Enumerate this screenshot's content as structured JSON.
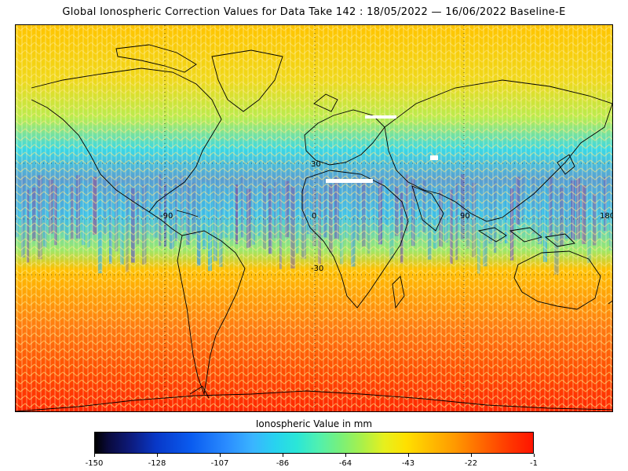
{
  "title": "Global Ionospheric Correction Values for Data Take 142 : 18/05/2022 — 16/06/2022 Baseline-E",
  "map": {
    "longitude_labels": [
      "-90",
      "0",
      "90",
      "180"
    ],
    "latitude_labels": [
      "30",
      "-30"
    ]
  },
  "colorbar": {
    "title": "Ionospheric Value in mm",
    "min": -150,
    "max": -1,
    "ticks": [
      "-150",
      "-128",
      "-107",
      "-86",
      "-64",
      "-43",
      "-22",
      "-1"
    ],
    "colors": [
      "#000000",
      "#0d1a7a",
      "#0a5cf0",
      "#3ab4ff",
      "#2ae6d8",
      "#78f07a",
      "#e6f01e",
      "#ffc000",
      "#ff6a00",
      "#ff1400"
    ]
  }
}
